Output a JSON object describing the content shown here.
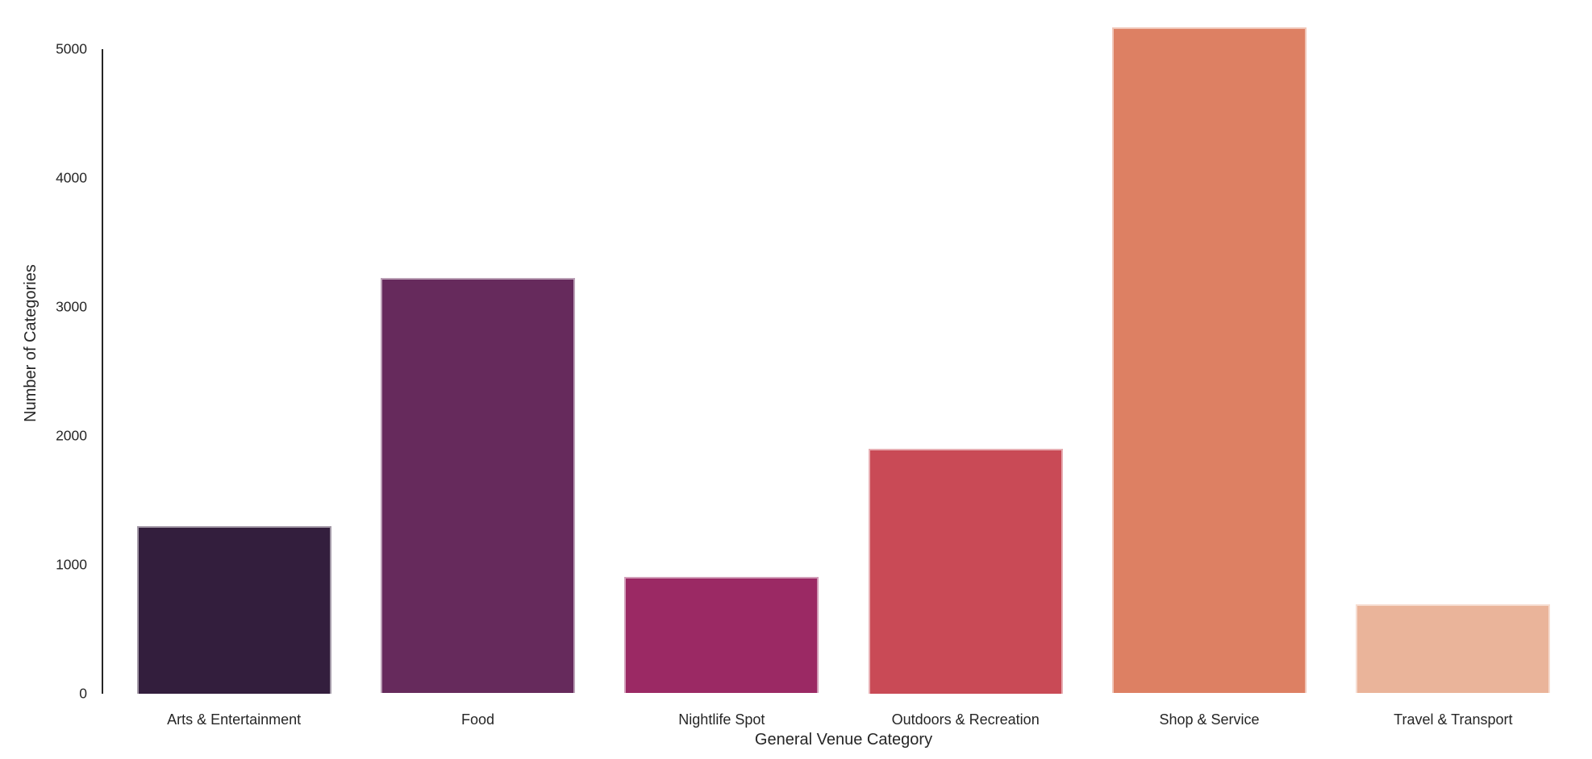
{
  "chart_data": {
    "type": "bar",
    "title": "",
    "xlabel": "General Venue Category",
    "ylabel": "Number of Categories",
    "categories": [
      "Arts & Entertainment",
      "Food",
      "Nightlife Spot",
      "Outdoors & Recreation",
      "Shop & Service",
      "Travel & Transport"
    ],
    "values": [
      1300,
      3220,
      905,
      1900,
      5165,
      690
    ],
    "bar_colors": [
      "#331E3D",
      "#662A5C",
      "#9B2964",
      "#C94A56",
      "#DD8063",
      "#EAB49A"
    ],
    "y_ticks": [
      0,
      1000,
      2000,
      3000,
      4000,
      5000
    ],
    "ylim": [
      0,
      5425
    ],
    "grid": false,
    "legend_position": "none",
    "axis_color": "#262626",
    "text_color": "#262626",
    "background_color": "#FFFFFF"
  }
}
